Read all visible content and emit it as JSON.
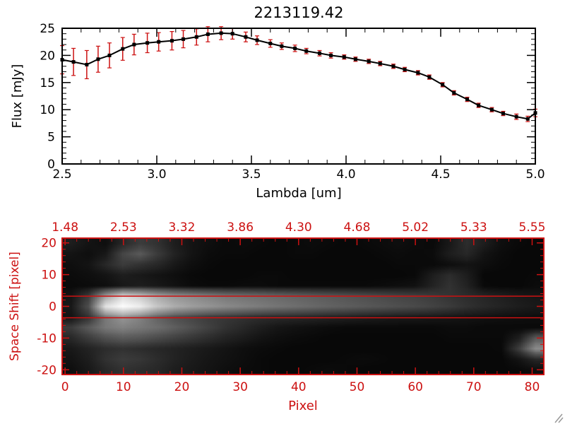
{
  "title": "2213119.42",
  "accent_red": "#cc1111",
  "chart_data": [
    {
      "type": "line",
      "title": "2213119.42",
      "xlabel": "Lambda [um]",
      "ylabel": "Flux [mJy]",
      "xlim": [
        2.5,
        5.0
      ],
      "ylim": [
        0,
        25
      ],
      "xticks": [
        2.5,
        3.0,
        3.5,
        4.0,
        4.5,
        5.0
      ],
      "xtick_labels": [
        "2.5",
        "3.0",
        "3.5",
        "4.0",
        "4.5",
        "5.0"
      ],
      "yticks": [
        0,
        5,
        10,
        15,
        20,
        25
      ],
      "ytick_labels": [
        "0",
        "5",
        "10",
        "15",
        "20",
        "25"
      ],
      "minor_x_step": 0.1,
      "minor_y_step": 1,
      "grid": false,
      "marker": "square",
      "line_color": "#000000",
      "marker_color": "#000000",
      "error_color": "#cc1111",
      "series": [
        {
          "name": "flux",
          "x": [
            2.5,
            2.56,
            2.63,
            2.69,
            2.75,
            2.82,
            2.88,
            2.95,
            3.01,
            3.08,
            3.14,
            3.21,
            3.27,
            3.34,
            3.4,
            3.47,
            3.53,
            3.6,
            3.66,
            3.73,
            3.79,
            3.86,
            3.92,
            3.99,
            4.05,
            4.12,
            4.18,
            4.25,
            4.31,
            4.38,
            4.44,
            4.51,
            4.57,
            4.64,
            4.7,
            4.77,
            4.83,
            4.9,
            4.96,
            5.0
          ],
          "y": [
            19.2,
            18.8,
            18.3,
            19.3,
            20.0,
            21.2,
            22.0,
            22.3,
            22.5,
            22.7,
            23.0,
            23.4,
            23.9,
            24.1,
            24.0,
            23.4,
            22.8,
            22.2,
            21.7,
            21.3,
            20.8,
            20.4,
            20.0,
            19.7,
            19.3,
            18.9,
            18.5,
            18.0,
            17.4,
            16.8,
            16.0,
            14.6,
            13.1,
            11.9,
            10.8,
            10.0,
            9.3,
            8.7,
            8.3,
            9.4
          ],
          "yerr": [
            2.6,
            2.5,
            2.6,
            2.4,
            2.3,
            2.1,
            1.9,
            1.8,
            1.7,
            1.7,
            1.6,
            1.5,
            1.4,
            1.2,
            1.0,
            0.9,
            0.8,
            0.7,
            0.6,
            0.6,
            0.5,
            0.5,
            0.5,
            0.4,
            0.4,
            0.4,
            0.4,
            0.4,
            0.4,
            0.4,
            0.4,
            0.4,
            0.4,
            0.4,
            0.4,
            0.4,
            0.4,
            0.5,
            0.5,
            0.7
          ]
        }
      ]
    },
    {
      "type": "heatmap",
      "xlabel": "Pixel",
      "ylabel": "Space Shift [pixel]",
      "xlim": [
        -0.5,
        82
      ],
      "ylim": [
        -21.5,
        21.5
      ],
      "xticks": [
        0,
        10,
        20,
        30,
        40,
        50,
        60,
        70,
        80
      ],
      "xtick_labels": [
        "0",
        "10",
        "20",
        "30",
        "40",
        "50",
        "60",
        "70",
        "80"
      ],
      "yticks": [
        20,
        10,
        0,
        -10,
        -20
      ],
      "ytick_labels": [
        "20",
        "10",
        "0",
        "-10",
        "-20"
      ],
      "minor_x_step": 2,
      "minor_y_step": 2,
      "top_axis": {
        "x_values": [
          0,
          10,
          20,
          30,
          40,
          50,
          60,
          70,
          80
        ],
        "labels": [
          "1.48",
          "2.53",
          "3.32",
          "3.86",
          "4.30",
          "4.68",
          "5.02",
          "5.33",
          "5.55"
        ]
      },
      "overlay_lines_y": [
        3.2,
        -3.6
      ],
      "axis_color": "#cc1111",
      "colormap": "grayscale",
      "grid_cols": 28,
      "grid_rows": 13,
      "values": [
        [
          30,
          20,
          15,
          40,
          60,
          50,
          30,
          20,
          15,
          10,
          12,
          10,
          8,
          10,
          12,
          10,
          8,
          10,
          12,
          15,
          12,
          10,
          25,
          45,
          30,
          15,
          10,
          8
        ],
        [
          20,
          15,
          25,
          70,
          90,
          60,
          35,
          20,
          12,
          10,
          10,
          8,
          8,
          10,
          10,
          8,
          8,
          8,
          10,
          12,
          10,
          12,
          30,
          40,
          20,
          12,
          8,
          8
        ],
        [
          15,
          20,
          40,
          60,
          50,
          40,
          25,
          15,
          10,
          8,
          8,
          8,
          8,
          8,
          8,
          8,
          8,
          8,
          8,
          10,
          10,
          10,
          15,
          20,
          15,
          10,
          8,
          8
        ],
        [
          12,
          15,
          20,
          30,
          25,
          20,
          15,
          10,
          8,
          8,
          8,
          10,
          10,
          8,
          8,
          8,
          8,
          8,
          8,
          8,
          10,
          30,
          45,
          30,
          8,
          8,
          8,
          10
        ],
        [
          10,
          12,
          15,
          25,
          30,
          25,
          18,
          12,
          10,
          10,
          12,
          12,
          10,
          10,
          10,
          10,
          10,
          10,
          12,
          15,
          18,
          35,
          50,
          35,
          10,
          8,
          8,
          12
        ],
        [
          20,
          60,
          160,
          220,
          200,
          170,
          150,
          140,
          130,
          120,
          115,
          110,
          105,
          100,
          95,
          90,
          85,
          80,
          75,
          70,
          66,
          60,
          52,
          45,
          38,
          32,
          26,
          22
        ],
        [
          25,
          80,
          230,
          255,
          240,
          200,
          175,
          160,
          150,
          140,
          132,
          125,
          118,
          112,
          106,
          100,
          95,
          90,
          85,
          80,
          75,
          68,
          60,
          50,
          42,
          36,
          30,
          26
        ],
        [
          20,
          50,
          120,
          150,
          130,
          100,
          80,
          70,
          60,
          55,
          50,
          45,
          42,
          40,
          38,
          35,
          33,
          30,
          28,
          26,
          25,
          24,
          22,
          20,
          18,
          16,
          15,
          14
        ],
        [
          60,
          90,
          120,
          130,
          120,
          110,
          95,
          80,
          65,
          50,
          40,
          30,
          22,
          18,
          15,
          12,
          10,
          10,
          10,
          10,
          10,
          10,
          12,
          12,
          10,
          10,
          10,
          10
        ],
        [
          40,
          60,
          80,
          90,
          85,
          75,
          65,
          55,
          45,
          35,
          28,
          20,
          15,
          12,
          10,
          8,
          8,
          8,
          8,
          8,
          8,
          8,
          10,
          10,
          10,
          10,
          30,
          90
        ],
        [
          25,
          35,
          45,
          50,
          45,
          40,
          35,
          30,
          25,
          20,
          15,
          12,
          10,
          8,
          8,
          8,
          8,
          8,
          8,
          8,
          8,
          8,
          8,
          8,
          8,
          10,
          60,
          140
        ],
        [
          20,
          30,
          50,
          60,
          55,
          45,
          35,
          28,
          22,
          18,
          14,
          10,
          8,
          8,
          8,
          8,
          10,
          12,
          10,
          8,
          8,
          8,
          8,
          8,
          8,
          8,
          20,
          40
        ],
        [
          15,
          25,
          40,
          50,
          45,
          40,
          30,
          25,
          20,
          15,
          12,
          10,
          8,
          8,
          10,
          12,
          10,
          8,
          8,
          8,
          8,
          8,
          8,
          8,
          8,
          8,
          10,
          15
        ]
      ]
    }
  ]
}
